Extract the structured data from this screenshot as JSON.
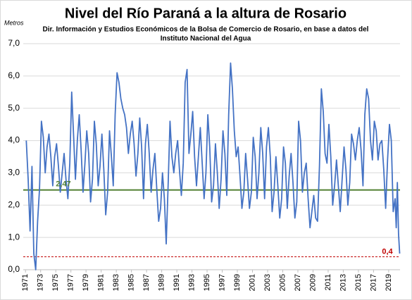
{
  "chart_data": {
    "type": "line",
    "title": "Nivel del Río Paraná a la altura de Rosario",
    "subtitle": [
      "Dir. Información y Estudios Económicos de la Bolsa de Comercio de Rosario, en base a datos del",
      "Instituto Nacional del Agua"
    ],
    "y_label": "Metros",
    "xlim": [
      1970.7,
      2020.5
    ],
    "xticks": [
      1971,
      1973,
      1975,
      1977,
      1979,
      1981,
      1983,
      1985,
      1987,
      1989,
      1991,
      1993,
      1995,
      1997,
      1999,
      2001,
      2003,
      2005,
      2007,
      2009,
      2011,
      2013,
      2015,
      2017,
      2019
    ],
    "ylim": [
      0,
      7
    ],
    "yticks": [
      {
        "value": 0,
        "label": "0,0"
      },
      {
        "value": 1,
        "label": "1,0"
      },
      {
        "value": 2,
        "label": "2,0"
      },
      {
        "value": 3,
        "label": "3,0"
      },
      {
        "value": 4,
        "label": "4,0"
      },
      {
        "value": 5,
        "label": "5,0"
      },
      {
        "value": 6,
        "label": "6,0"
      },
      {
        "value": 7,
        "label": "7,0"
      }
    ],
    "grid": true,
    "series": [
      {
        "color": "#4472c4",
        "x": [
          1971.1,
          1971.35,
          1971.6,
          1971.85,
          1972.1,
          1972.35,
          1972.6,
          1972.85,
          1973.1,
          1973.35,
          1973.6,
          1973.85,
          1974.1,
          1974.35,
          1974.6,
          1974.85,
          1975.1,
          1975.35,
          1975.6,
          1975.85,
          1976.1,
          1976.35,
          1976.6,
          1976.85,
          1977.1,
          1977.35,
          1977.6,
          1977.85,
          1978.1,
          1978.35,
          1978.6,
          1978.85,
          1979.1,
          1979.35,
          1979.6,
          1979.85,
          1980.1,
          1980.35,
          1980.6,
          1980.85,
          1981.1,
          1981.35,
          1981.6,
          1981.85,
          1982.1,
          1982.35,
          1982.6,
          1982.85,
          1983.1,
          1983.35,
          1983.6,
          1983.85,
          1984.1,
          1984.35,
          1984.6,
          1984.85,
          1985.1,
          1985.35,
          1985.6,
          1985.85,
          1986.1,
          1986.35,
          1986.6,
          1986.85,
          1987.1,
          1987.35,
          1987.6,
          1987.85,
          1988.1,
          1988.35,
          1988.6,
          1988.85,
          1989.1,
          1989.35,
          1989.6,
          1989.85,
          1990.1,
          1990.35,
          1990.6,
          1990.85,
          1991.1,
          1991.35,
          1991.6,
          1991.85,
          1992.1,
          1992.35,
          1992.6,
          1992.85,
          1993.1,
          1993.35,
          1993.6,
          1993.85,
          1994.1,
          1994.35,
          1994.6,
          1994.85,
          1995.1,
          1995.35,
          1995.6,
          1995.85,
          1996.1,
          1996.35,
          1996.6,
          1996.85,
          1997.1,
          1997.35,
          1997.6,
          1997.85,
          1998.1,
          1998.35,
          1998.6,
          1998.85,
          1999.1,
          1999.35,
          1999.6,
          1999.85,
          2000.1,
          2000.35,
          2000.6,
          2000.85,
          2001.1,
          2001.35,
          2001.6,
          2001.85,
          2002.1,
          2002.35,
          2002.6,
          2002.85,
          2003.1,
          2003.35,
          2003.6,
          2003.85,
          2004.1,
          2004.35,
          2004.6,
          2004.85,
          2005.1,
          2005.35,
          2005.6,
          2005.85,
          2006.1,
          2006.35,
          2006.6,
          2006.85,
          2007.1,
          2007.35,
          2007.6,
          2007.85,
          2008.1,
          2008.35,
          2008.6,
          2008.85,
          2009.1,
          2009.35,
          2009.6,
          2009.85,
          2010.1,
          2010.35,
          2010.6,
          2010.85,
          2011.1,
          2011.35,
          2011.6,
          2011.85,
          2012.1,
          2012.35,
          2012.6,
          2012.85,
          2013.1,
          2013.35,
          2013.6,
          2013.85,
          2014.1,
          2014.35,
          2014.6,
          2014.85,
          2015.1,
          2015.35,
          2015.6,
          2015.85,
          2016.1,
          2016.35,
          2016.6,
          2016.85,
          2017.1,
          2017.35,
          2017.6,
          2017.85,
          2018.1,
          2018.35,
          2018.6,
          2018.85,
          2019.1,
          2019.35,
          2019.6,
          2019.85,
          2020.0,
          2020.15,
          2020.3,
          2020.45
        ],
        "values": [
          4.0,
          2.8,
          1.2,
          3.2,
          0.5,
          0.0,
          1.5,
          2.5,
          4.6,
          4.1,
          3.0,
          3.8,
          4.2,
          3.5,
          2.6,
          3.5,
          3.9,
          3.2,
          2.4,
          3.0,
          3.6,
          2.8,
          2.2,
          3.3,
          5.5,
          4.2,
          2.8,
          4.0,
          4.8,
          3.7,
          2.4,
          3.3,
          4.3,
          3.6,
          2.1,
          2.8,
          4.6,
          3.9,
          2.6,
          3.2,
          4.2,
          3.1,
          1.7,
          2.4,
          4.3,
          3.5,
          2.6,
          4.8,
          6.1,
          5.8,
          5.3,
          5.0,
          4.8,
          4.4,
          3.6,
          4.2,
          4.6,
          3.9,
          2.9,
          3.6,
          4.7,
          3.8,
          2.2,
          3.9,
          4.5,
          3.6,
          2.4,
          3.1,
          3.6,
          2.5,
          1.5,
          1.9,
          3.0,
          2.2,
          0.8,
          2.6,
          4.6,
          3.5,
          3.0,
          3.6,
          4.0,
          3.1,
          2.3,
          3.3,
          5.8,
          6.2,
          3.6,
          4.2,
          4.9,
          3.5,
          2.6,
          3.5,
          4.4,
          3.3,
          2.2,
          3.0,
          4.8,
          3.8,
          2.1,
          2.6,
          3.9,
          3.0,
          1.9,
          2.8,
          4.3,
          3.6,
          2.3,
          4.8,
          6.4,
          5.6,
          4.3,
          3.5,
          3.8,
          2.9,
          1.9,
          2.4,
          3.6,
          2.8,
          1.9,
          2.4,
          4.1,
          3.5,
          2.2,
          3.0,
          4.4,
          3.6,
          2.2,
          3.8,
          4.4,
          3.5,
          1.8,
          2.4,
          3.5,
          2.6,
          1.6,
          2.2,
          3.8,
          3.3,
          1.9,
          2.9,
          3.6,
          2.7,
          1.6,
          2.1,
          4.6,
          4.0,
          2.4,
          3.0,
          3.3,
          2.2,
          1.3,
          1.8,
          2.3,
          1.6,
          1.5,
          3.2,
          5.6,
          4.9,
          3.6,
          3.3,
          4.5,
          3.5,
          2.0,
          2.6,
          3.4,
          2.6,
          1.8,
          2.8,
          3.8,
          3.1,
          2.0,
          2.7,
          4.2,
          3.9,
          3.4,
          4.0,
          4.4,
          3.7,
          2.6,
          4.8,
          5.6,
          5.3,
          4.0,
          3.4,
          4.6,
          4.3,
          3.4,
          3.9,
          4.0,
          3.1,
          1.9,
          3.4,
          4.5,
          4.0,
          1.8,
          2.2,
          1.3,
          2.7,
          1.1,
          0.5
        ]
      }
    ],
    "mean_line": {
      "value": 2.47,
      "label": "2,47",
      "color": "#548235"
    },
    "threshold_line": {
      "value": 0.4,
      "label": "0,4",
      "color": "#c00000"
    }
  }
}
